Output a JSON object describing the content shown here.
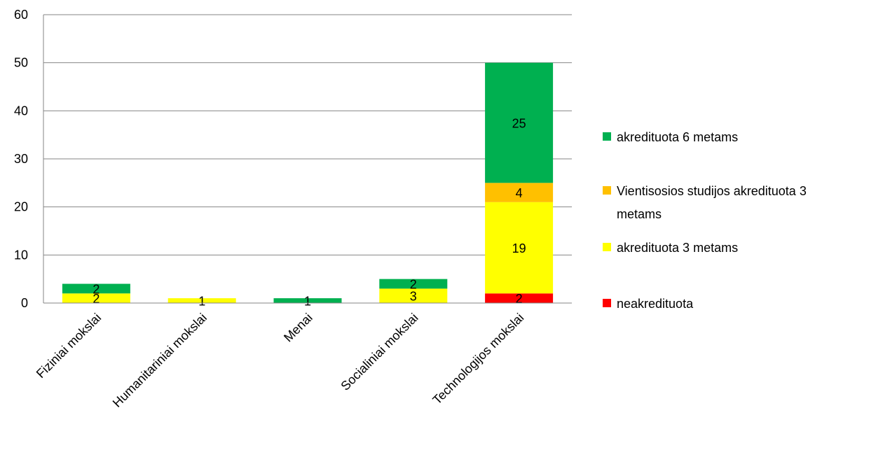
{
  "chart_data": {
    "type": "bar",
    "stacked": true,
    "categories": [
      "Fiziniai mokslai",
      "Humanitariniai mokslai",
      "Menai",
      "Socialiniai mokslai",
      "Technologijos mokslai"
    ],
    "series": [
      {
        "name": "neakredituota",
        "color": "#ff0000",
        "values": [
          0,
          0,
          0,
          0,
          2
        ],
        "labels": [
          "",
          "",
          "",
          "",
          "2"
        ]
      },
      {
        "name": "akredituota 3 metams",
        "color": "#ffff00",
        "values": [
          2,
          1,
          0,
          3,
          19
        ],
        "labels": [
          "2",
          "1",
          "",
          "3",
          "19"
        ]
      },
      {
        "name": "Vientisosios studijos akredituota 3 metams",
        "legend_lines": [
          "Vientisosios studijos akredituota 3",
          "metams"
        ],
        "color": "#ffc000",
        "values": [
          0,
          0,
          0,
          0,
          4
        ],
        "labels": [
          "",
          "",
          "",
          "",
          "4"
        ]
      },
      {
        "name": "akredituota 6 metams",
        "color": "#00b050",
        "values": [
          2,
          0,
          1,
          2,
          25
        ],
        "labels": [
          "2",
          "",
          "1",
          "2",
          "25"
        ]
      }
    ],
    "yticks": [
      "0",
      "10",
      "20",
      "30",
      "40",
      "50",
      "60"
    ],
    "ylim": [
      0,
      60
    ],
    "grid": true,
    "legend_position": "right"
  }
}
